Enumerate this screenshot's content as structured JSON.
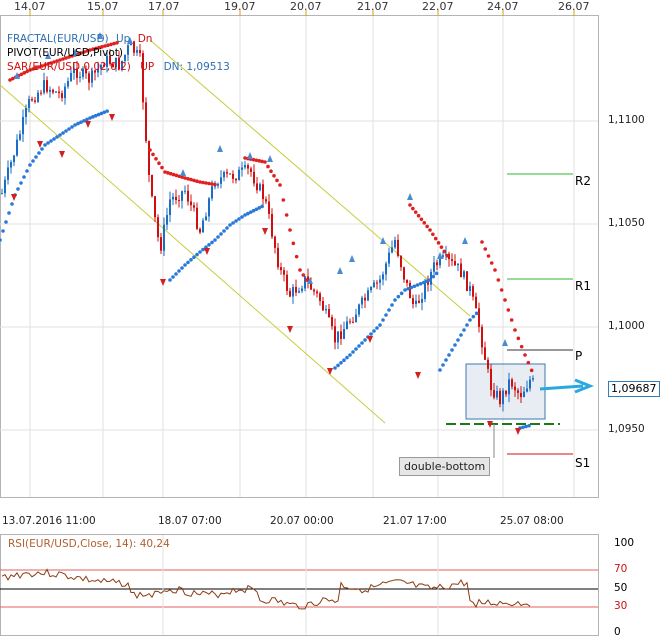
{
  "top_axis": [
    "14.07",
    "15.07",
    "17.07",
    "19.07",
    "20.07",
    "21.07",
    "22.07",
    "24.07",
    "26.07"
  ],
  "bottom_axis": [
    "13.07.2016 11:00",
    "18.07 07:00",
    "20.07 00:00",
    "21.07 17:00",
    "25.07 08:00"
  ],
  "price_axis": [
    "1,1100",
    "1,1050",
    "1,1000",
    "1,0950"
  ],
  "current_price": "1,09687",
  "indicators": {
    "fractal_name": "FRACTAL(EUR/USD)",
    "fractal_up": "Up",
    "fractal_dn": "Dn",
    "pivot_name": "PIVOT(EUR/USD,Pivot)",
    "sar_name": "SAR(EUR/USD,0.02,0.2)",
    "sar_up": "UP",
    "sar_dn": "DN: 1,09513"
  },
  "pivot_levels": {
    "r2": "R2",
    "r1": "R1",
    "p": "P",
    "s1": "S1"
  },
  "annotation": "double-bottom",
  "rsi": {
    "title": "RSI(EUR/USD,Close, 14): 40,24",
    "axis": [
      "100",
      "70",
      "50",
      "30",
      "0"
    ]
  },
  "colors": {
    "up_candle": "#1a6ec6",
    "down_candle": "#d01010",
    "channel": "#c8cc3a",
    "pivot_green": "#2eb82e",
    "s1_red": "#d01010",
    "sar_up": "#2979d8",
    "sar_dn": "#e02020",
    "arrow": "#2aa8e0",
    "rsi_line": "#8a3a10"
  }
}
